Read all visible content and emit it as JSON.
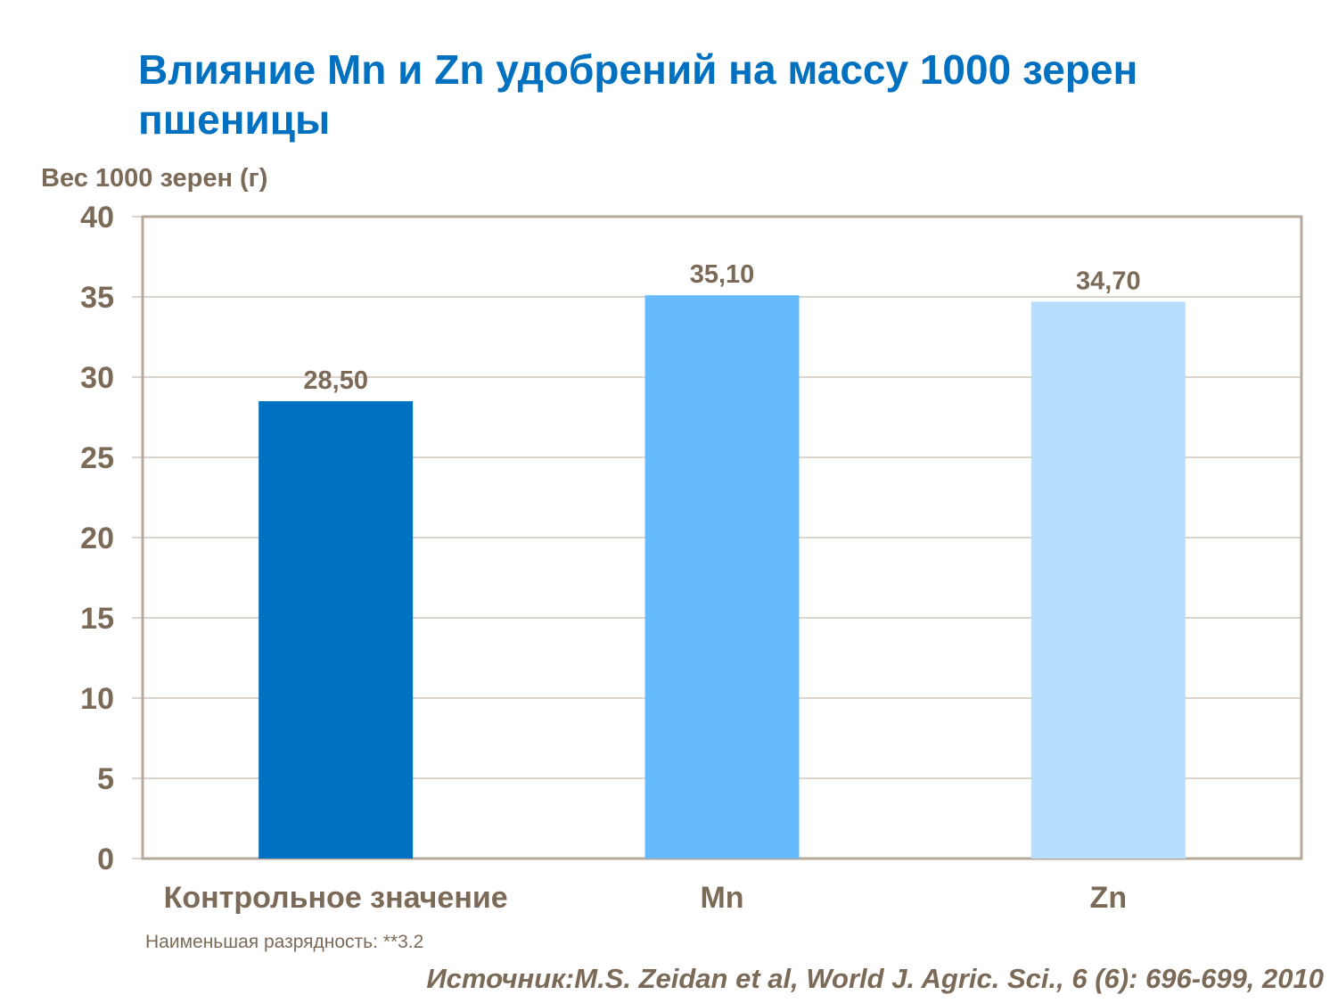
{
  "chart_data": {
    "type": "bar",
    "title": "Влияние Mn и Zn удобрений на массу 1000 зерен пшеницы",
    "ylabel": "Вес 1000 зерен (г)",
    "xlabel": "",
    "categories": [
      "Контрольное значение",
      "Mn",
      "Zn"
    ],
    "values": [
      28.5,
      35.1,
      34.7
    ],
    "data_labels": [
      "28,50",
      "35,10",
      "34,70"
    ],
    "colors": [
      "#0070C0",
      "#66BBFF",
      "#B8DEFF"
    ],
    "ylim": [
      0,
      40
    ],
    "yticks": [
      0,
      5,
      10,
      15,
      20,
      25,
      30,
      35,
      40
    ],
    "grid": true,
    "legend": "none"
  },
  "footnote": "Наименьшая разрядность: **3.2",
  "source": "Источник:M.S. Zeidan et al, World J. Agric. Sci., 6 (6): 696-699, 2010"
}
